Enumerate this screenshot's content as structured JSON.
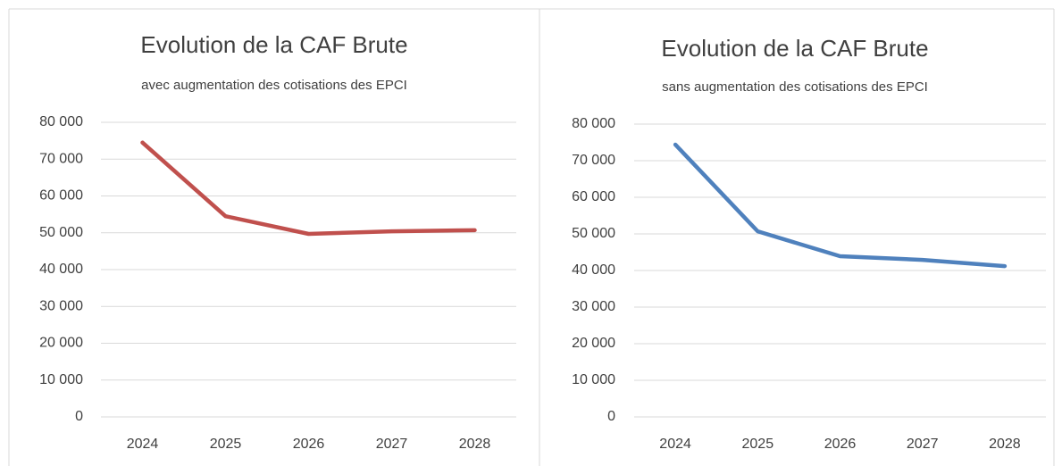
{
  "chart_data": [
    {
      "type": "line",
      "title": "Evolution de la CAF Brute",
      "subtitle": "avec augmentation des cotisations des EPCI",
      "categories": [
        "2024",
        "2025",
        "2026",
        "2027",
        "2028"
      ],
      "values": [
        74500,
        54500,
        49700,
        50400,
        50700
      ],
      "color": "#c0504d",
      "ylim": [
        0,
        80000
      ],
      "yticks": [
        0,
        {
          "value": 10000,
          "label": "10 000"
        },
        {
          "value": 20000,
          "label": "20 000"
        },
        {
          "value": 30000,
          "label": "30 000"
        },
        {
          "value": 40000,
          "label": "40 000"
        },
        {
          "value": 50000,
          "label": "50 000"
        },
        {
          "value": 60000,
          "label": "60 000"
        },
        {
          "value": 70000,
          "label": "70 000"
        },
        {
          "value": 80000,
          "label": "80 000"
        }
      ],
      "grid": true
    },
    {
      "type": "line",
      "title": "Evolution de la CAF Brute",
      "subtitle": "sans augmentation des cotisations des EPCI",
      "categories": [
        "2024",
        "2025",
        "2026",
        "2027",
        "2028"
      ],
      "values": [
        74400,
        50700,
        43900,
        42900,
        41200
      ],
      "color": "#4f81bd",
      "ylim": [
        0,
        80000
      ],
      "yticks": [
        0,
        {
          "value": 10000,
          "label": "10 000"
        },
        {
          "value": 20000,
          "label": "20 000"
        },
        {
          "value": 30000,
          "label": "30 000"
        },
        {
          "value": 40000,
          "label": "40 000"
        },
        {
          "value": 50000,
          "label": "50 000"
        },
        {
          "value": 60000,
          "label": "60 000"
        },
        {
          "value": 70000,
          "label": "70 000"
        },
        {
          "value": 80000,
          "label": "80 000"
        }
      ],
      "grid": true
    }
  ]
}
